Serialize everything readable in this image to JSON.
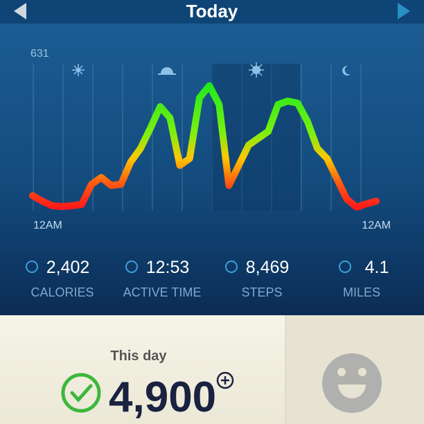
{
  "header": {
    "title": "Today"
  },
  "chart": {
    "max_label": 631,
    "x_labels": [
      "12AM",
      "12AM"
    ],
    "values": [
      59,
      35,
      15,
      12,
      15,
      21,
      108,
      138,
      103,
      108,
      205,
      264,
      352,
      445,
      396,
      190,
      220,
      483,
      536,
      454,
      103,
      190,
      278,
      308,
      337,
      454,
      469,
      460,
      381,
      264,
      220,
      132,
      44,
      9,
      23,
      35
    ]
  },
  "stats": [
    {
      "value": "2,402",
      "label": "CALORIES"
    },
    {
      "value": "12:53",
      "label": "ACTIVE TIME"
    },
    {
      "value": "8,469",
      "label": "STEPS"
    },
    {
      "value": "4.1",
      "label": "MILES"
    }
  ],
  "summary": {
    "caption": "This day",
    "value": "4,900"
  }
}
